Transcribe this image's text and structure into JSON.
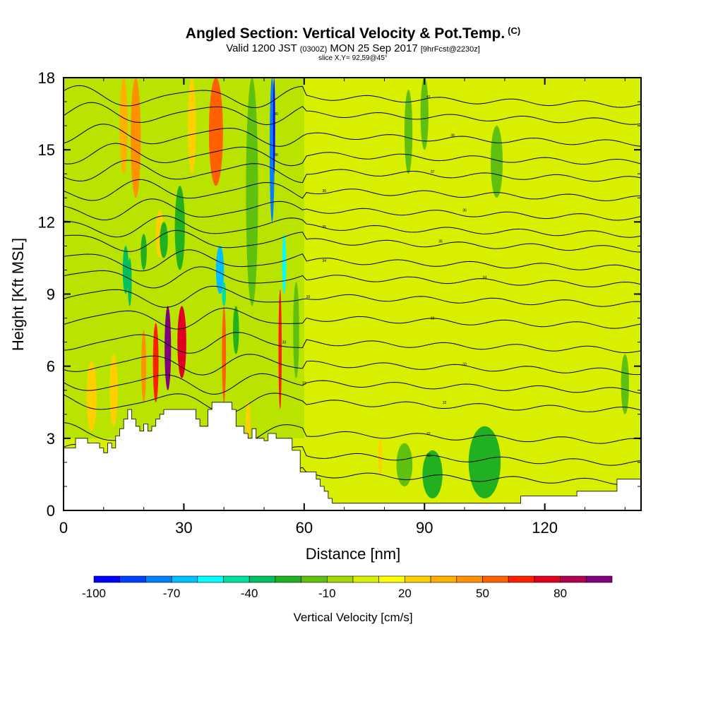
{
  "header": {
    "title": "Angled Section: Vertical Velocity & Pot.Temp.",
    "title_unit": "(C)",
    "valid_prefix": "Valid 1200 JST",
    "valid_utc": "(0300Z)",
    "valid_date": "MON 25 Sep 2017",
    "forecast_tag": "[9hrFcst@2230z]",
    "slice": "slice X,Y= 92,59@45°"
  },
  "chart_data": {
    "type": "heatmap",
    "xlabel": "Distance [nm]",
    "ylabel": "Height [Kft MSL]",
    "xlim": [
      0,
      144
    ],
    "ylim": [
      0,
      18
    ],
    "x_ticks": [
      0,
      30,
      60,
      90,
      120
    ],
    "x_tick_labels": [
      "0",
      "30",
      "60",
      "90",
      "120"
    ],
    "y_ticks": [
      0,
      3,
      6,
      9,
      12,
      15,
      18
    ],
    "y_tick_labels": [
      "0",
      "3",
      "6",
      "9",
      "12",
      "15",
      "18"
    ],
    "terrain": {
      "x": [
        0,
        3,
        3,
        6,
        6,
        9,
        9,
        10,
        10,
        11,
        11,
        12,
        12,
        13,
        13,
        14,
        14,
        15,
        15,
        16,
        16,
        17,
        17,
        18,
        18,
        19,
        19,
        20,
        20,
        21,
        21,
        22,
        22,
        23,
        23,
        24,
        24,
        25,
        25,
        26,
        26,
        28,
        28,
        33,
        33,
        34,
        34,
        36,
        36,
        37,
        37,
        38,
        38,
        42,
        42,
        43,
        43,
        45,
        45,
        46,
        46,
        47,
        47,
        48,
        48,
        50,
        50,
        51,
        51,
        53,
        53,
        57,
        57,
        59,
        59,
        63,
        63,
        64,
        64,
        65,
        65,
        66,
        66,
        67,
        67,
        68,
        68,
        71,
        71,
        114,
        114,
        128,
        128,
        138,
        138,
        144
      ],
      "y": [
        2.6,
        2.6,
        3.0,
        3.0,
        2.8,
        2.8,
        2.6,
        2.6,
        2.4,
        2.4,
        2.8,
        2.8,
        2.6,
        2.6,
        3.1,
        3.1,
        3.4,
        3.4,
        3.8,
        3.8,
        4.2,
        4.2,
        3.8,
        3.8,
        3.5,
        3.5,
        3.3,
        3.3,
        3.6,
        3.6,
        3.3,
        3.3,
        3.5,
        3.5,
        3.8,
        3.8,
        4.0,
        4.0,
        4.2,
        4.2,
        4.2,
        4.2,
        4.2,
        4.2,
        3.8,
        3.8,
        3.5,
        3.5,
        4.2,
        4.2,
        4.5,
        4.5,
        4.5,
        4.5,
        4.2,
        4.2,
        3.5,
        3.5,
        3.2,
        3.2,
        3.0,
        3.0,
        3.4,
        3.4,
        3.0,
        3.0,
        2.9,
        2.9,
        3.2,
        3.2,
        3.0,
        3.0,
        2.5,
        2.5,
        1.6,
        1.6,
        1.3,
        1.3,
        1.0,
        1.0,
        0.8,
        0.8,
        0.5,
        0.5,
        0.3,
        0.3,
        0.3,
        0.3,
        0.3,
        0.3,
        0.6,
        0.6,
        0.8,
        0.8,
        1.3,
        1.3
      ]
    },
    "theta_contours": [
      {
        "base": 1.5,
        "label": "",
        "label_x": 0
      },
      {
        "base": 2.3,
        "label": "32",
        "label_x": 91
      },
      {
        "base": 3.2,
        "label": "32",
        "label_x": 91
      },
      {
        "base": 4.5,
        "label": "32",
        "label_x": 95
      },
      {
        "base": 5.3,
        "label": "32",
        "label_x": 60
      },
      {
        "base": 6.1,
        "label": "33",
        "label_x": 100
      },
      {
        "base": 7.0,
        "label": "33",
        "label_x": 55
      },
      {
        "base": 8.0,
        "label": "33",
        "label_x": 92
      },
      {
        "base": 8.9,
        "label": "33",
        "label_x": 61
      },
      {
        "base": 9.7,
        "label": "34",
        "label_x": 105
      },
      {
        "base": 10.4,
        "label": "34",
        "label_x": 65
      },
      {
        "base": 11.2,
        "label": "35",
        "label_x": 94
      },
      {
        "base": 11.8,
        "label": "35",
        "label_x": 65
      },
      {
        "base": 12.5,
        "label": "36",
        "label_x": 100
      },
      {
        "base": 13.3,
        "label": "36",
        "label_x": 65
      },
      {
        "base": 14.1,
        "label": "37",
        "label_x": 92
      },
      {
        "base": 14.8,
        "label": "38",
        "label_x": 53
      },
      {
        "base": 15.6,
        "label": "39",
        "label_x": 97
      },
      {
        "base": 16.5,
        "label": "40",
        "label_x": 53
      },
      {
        "base": 17.2,
        "label": "41",
        "label_x": 91
      }
    ],
    "velocity_cells": [
      {
        "x": 38,
        "y0": 13.5,
        "y1": 18,
        "w": 3.5,
        "v": 55
      },
      {
        "x": 18,
        "y0": 13.0,
        "y1": 18,
        "w": 2.5,
        "v": 45
      },
      {
        "x": 15,
        "y0": 14.0,
        "y1": 18,
        "w": 2.0,
        "v": 30
      },
      {
        "x": 26,
        "y0": 5.0,
        "y1": 8.5,
        "w": 1.6,
        "v": 90
      },
      {
        "x": 29.5,
        "y0": 5.5,
        "y1": 8.5,
        "w": 2.2,
        "v": 70
      },
      {
        "x": 23,
        "y0": 4.5,
        "y1": 7.8,
        "w": 1.4,
        "v": 65
      },
      {
        "x": 20,
        "y0": 4.5,
        "y1": 7.5,
        "w": 1.2,
        "v": 40
      },
      {
        "x": 7,
        "y0": 3.3,
        "y1": 6.2,
        "w": 2.5,
        "v": 25
      },
      {
        "x": 12.5,
        "y0": 3.5,
        "y1": 6.5,
        "w": 2.0,
        "v": 20
      },
      {
        "x": 40,
        "y0": 4.5,
        "y1": 8.5,
        "w": 1.0,
        "v": 50
      },
      {
        "x": 54,
        "y0": 4.2,
        "y1": 9.2,
        "w": 0.8,
        "v": 60
      },
      {
        "x": 46,
        "y0": 3.0,
        "y1": 4.5,
        "w": 1.2,
        "v": 20
      },
      {
        "x": 79,
        "y0": 1.5,
        "y1": 3.0,
        "w": 1.0,
        "v": 25
      },
      {
        "x": 92,
        "y0": 0.5,
        "y1": 2.0,
        "w": 0.8,
        "v": 20
      },
      {
        "x": 24,
        "y0": 10.5,
        "y1": 12.5,
        "w": 2.0,
        "v": 20
      },
      {
        "x": 32,
        "y0": 14.0,
        "y1": 18,
        "w": 2.0,
        "v": 20
      },
      {
        "x": 52,
        "y0": 12.0,
        "y1": 18,
        "w": 1.2,
        "v": -80
      },
      {
        "x": 52.5,
        "y0": 14.0,
        "y1": 18,
        "w": 0.5,
        "v": -100
      },
      {
        "x": 55,
        "y0": 9.0,
        "y1": 11.5,
        "w": 1.0,
        "v": -60
      },
      {
        "x": 39,
        "y0": 9.0,
        "y1": 11.0,
        "w": 2.0,
        "v": -70
      },
      {
        "x": 40,
        "y0": 8.5,
        "y1": 9.5,
        "w": 1.0,
        "v": -50
      },
      {
        "x": 15.5,
        "y0": 9.0,
        "y1": 11.0,
        "w": 1.5,
        "v": -40
      },
      {
        "x": 20,
        "y0": 10.0,
        "y1": 11.5,
        "w": 1.5,
        "v": -30
      },
      {
        "x": 29,
        "y0": 10.0,
        "y1": 13.5,
        "w": 2.5,
        "v": -30
      },
      {
        "x": 25,
        "y0": 10.5,
        "y1": 12.0,
        "w": 2.0,
        "v": -30
      },
      {
        "x": 47,
        "y0": 8.5,
        "y1": 18,
        "w": 3.0,
        "v": -15
      },
      {
        "x": 16.5,
        "y0": 8.5,
        "y1": 10.5,
        "w": 1.0,
        "v": -40
      },
      {
        "x": 43,
        "y0": 6.5,
        "y1": 8.5,
        "w": 1.5,
        "v": -25
      },
      {
        "x": 58,
        "y0": 5.5,
        "y1": 9.5,
        "w": 1.5,
        "v": -15
      },
      {
        "x": 105,
        "y0": 0.5,
        "y1": 3.5,
        "w": 8.0,
        "v": -30
      },
      {
        "x": 92,
        "y0": 0.5,
        "y1": 2.5,
        "w": 5.0,
        "v": -25
      },
      {
        "x": 85,
        "y0": 1.0,
        "y1": 2.8,
        "w": 4.0,
        "v": -12
      },
      {
        "x": 86,
        "y0": 14.0,
        "y1": 17.5,
        "w": 2.0,
        "v": -12
      },
      {
        "x": 90,
        "y0": 15.0,
        "y1": 18,
        "w": 2.0,
        "v": -12
      },
      {
        "x": 108,
        "y0": 13.0,
        "y1": 16.0,
        "w": 3.0,
        "v": -12
      },
      {
        "x": 140,
        "y0": 4.0,
        "y1": 6.5,
        "w": 2.0,
        "v": -15
      }
    ],
    "colorbar": {
      "label": "Vertical Velocity [cm/s]",
      "levels": [
        -100,
        -90,
        -80,
        -70,
        -60,
        -50,
        -40,
        -30,
        -20,
        -10,
        0,
        10,
        20,
        30,
        40,
        50,
        60,
        70,
        80,
        90,
        100
      ],
      "colors": [
        "#0000ff",
        "#0040ff",
        "#0080ff",
        "#00bfff",
        "#00ffff",
        "#00e0a0",
        "#00c060",
        "#20b020",
        "#60c010",
        "#a0d800",
        "#d8f000",
        "#ffff00",
        "#ffd000",
        "#ffb000",
        "#ff9000",
        "#ff6000",
        "#ff2000",
        "#e00020",
        "#b00050",
        "#800080"
      ],
      "tick_values": [
        -100,
        -70,
        -40,
        -10,
        20,
        50,
        80
      ],
      "tick_labels": [
        "-100",
        "-70",
        "-40",
        "-10",
        "20",
        "50",
        "80"
      ]
    }
  }
}
